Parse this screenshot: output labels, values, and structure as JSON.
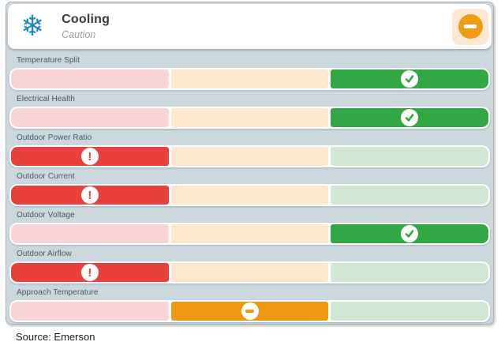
{
  "header": {
    "title": "Cooling",
    "subtitle": "Caution",
    "icon": "snowflake-icon",
    "badge": {
      "icon": "minus-icon",
      "status": "caution"
    }
  },
  "metrics": [
    {
      "label": "Temperature Split",
      "status": "good",
      "zone": "right",
      "icon": "check-icon"
    },
    {
      "label": "Electrical Health",
      "status": "good",
      "zone": "right",
      "icon": "check-icon"
    },
    {
      "label": "Outdoor Power Ratio",
      "status": "alert",
      "zone": "left",
      "icon": "exclamation-icon"
    },
    {
      "label": "Outdoor Current",
      "status": "alert",
      "zone": "left",
      "icon": "exclamation-icon"
    },
    {
      "label": "Outdoor Voltage",
      "status": "good",
      "zone": "right",
      "icon": "check-icon"
    },
    {
      "label": "Outdoor Airflow",
      "status": "alert",
      "zone": "left",
      "icon": "exclamation-icon"
    },
    {
      "label": "Approach Temperature",
      "status": "caution",
      "zone": "middle",
      "icon": "minus-icon"
    }
  ],
  "footer": {
    "source": "Source: Emerson"
  },
  "colors": {
    "alert": "#e8413c",
    "caution": "#ee9713",
    "good": "#31a843",
    "pale_alert": "#fad4d6",
    "pale_caution": "#fde7cd",
    "pale_good": "#cfe7d3",
    "panel_bg": "#cbd8de",
    "badge_bg": "#fbe8d2",
    "accent_blue": "#1d85c2"
  }
}
